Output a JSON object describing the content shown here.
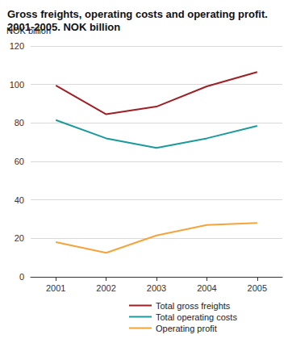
{
  "chart_data": {
    "type": "line",
    "title": "Gross freights, operating costs and operating profit. 2001-2005. NOK billion",
    "y_label": "NOK billion",
    "categories": [
      "2001",
      "2002",
      "2003",
      "2004",
      "2005"
    ],
    "series": [
      {
        "name": "Total gross freights",
        "color": "#9e1f24",
        "values": [
          99.5,
          84.5,
          88.5,
          99,
          106.5
        ]
      },
      {
        "name": "Total operating costs",
        "color": "#1a9a9a",
        "values": [
          81.5,
          72,
          67,
          72,
          78.5
        ]
      },
      {
        "name": "Operating profit",
        "color": "#f5a33b",
        "values": [
          18,
          12.5,
          21.5,
          27,
          28
        ]
      }
    ],
    "ylim": [
      0,
      120
    ],
    "yticks": [
      0,
      20,
      40,
      60,
      80,
      100,
      120
    ],
    "grid": true,
    "legend": "bottom"
  }
}
